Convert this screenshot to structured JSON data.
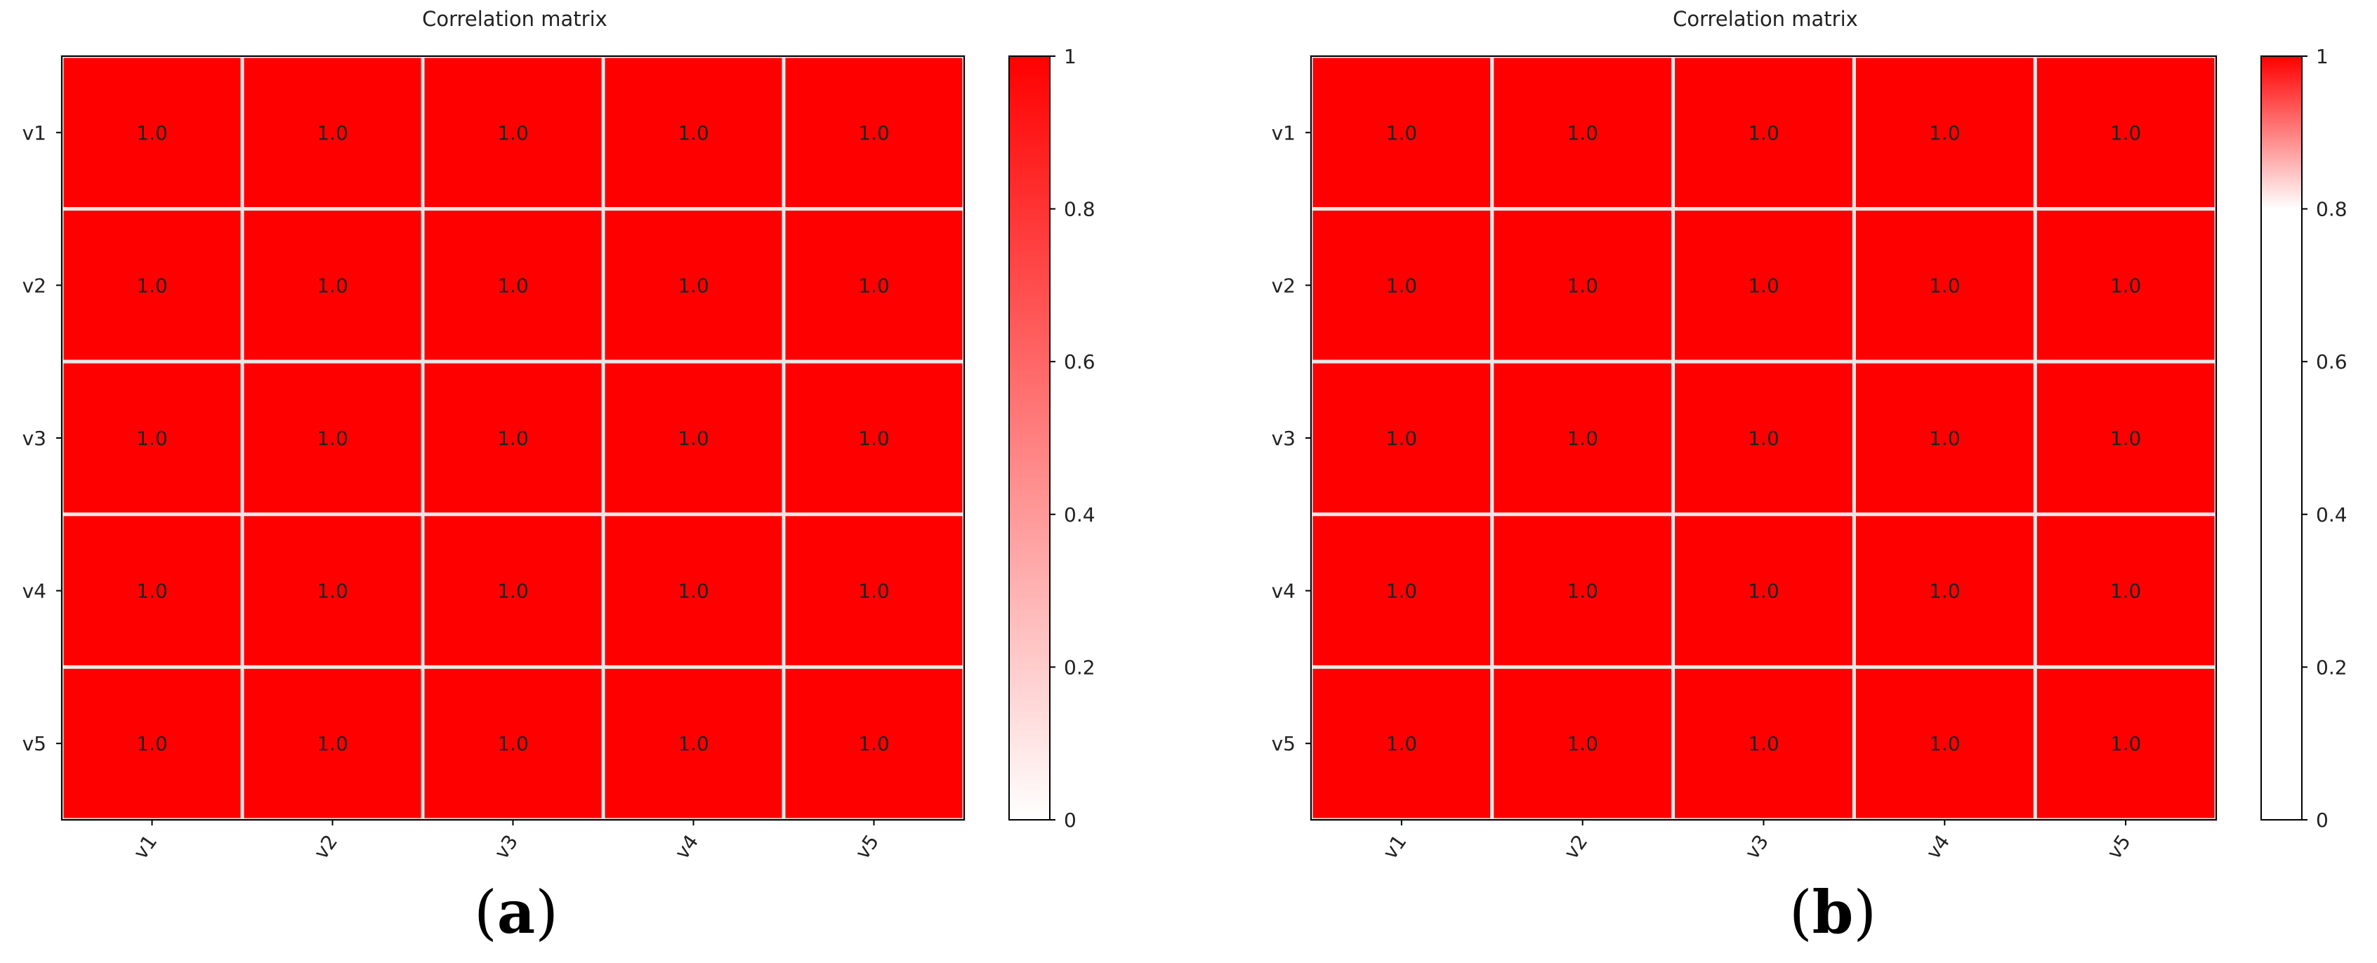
{
  "chart_data": [
    {
      "type": "heatmap",
      "panel": "(a)",
      "title": "Correlation matrix",
      "rows": [
        "v1",
        "v2",
        "v3",
        "v4",
        "v5"
      ],
      "columns": [
        "v1",
        "v2",
        "v3",
        "v4",
        "v5"
      ],
      "values": [
        [
          1.0,
          1.0,
          1.0,
          1.0,
          1.0
        ],
        [
          1.0,
          1.0,
          1.0,
          1.0,
          1.0
        ],
        [
          1.0,
          1.0,
          1.0,
          1.0,
          1.0
        ],
        [
          1.0,
          1.0,
          1.0,
          1.0,
          1.0
        ],
        [
          1.0,
          1.0,
          1.0,
          1.0,
          1.0
        ]
      ],
      "cell_labels": "1.0",
      "colorbar": {
        "range": [
          0,
          1
        ],
        "ticks": [
          "0",
          "0.2",
          "0.4",
          "0.6",
          "0.8",
          "1"
        ],
        "colormap": "linear white-to-red from 0 to 1",
        "low_color": "#ffffff",
        "high_color": "#ff0000"
      },
      "cell_color": "#ff0000",
      "grid_color": "#e8e8e8"
    },
    {
      "type": "heatmap",
      "panel": "(b)",
      "title": "Correlation matrix",
      "rows": [
        "v1",
        "v2",
        "v3",
        "v4",
        "v5"
      ],
      "columns": [
        "v1",
        "v2",
        "v3",
        "v4",
        "v5"
      ],
      "values": [
        [
          1.0,
          1.0,
          1.0,
          1.0,
          1.0
        ],
        [
          1.0,
          1.0,
          1.0,
          1.0,
          1.0
        ],
        [
          1.0,
          1.0,
          1.0,
          1.0,
          1.0
        ],
        [
          1.0,
          1.0,
          1.0,
          1.0,
          1.0
        ],
        [
          1.0,
          1.0,
          1.0,
          1.0,
          1.0
        ]
      ],
      "cell_labels": "1.0",
      "colorbar": {
        "range": [
          0,
          1
        ],
        "ticks": [
          "0",
          "0.2",
          "0.4",
          "0.6",
          "0.8",
          "1"
        ],
        "colormap": "white below 0.8, white-to-red from 0.8 to 1",
        "threshold": 0.8,
        "low_color": "#ffffff",
        "high_color": "#ff0000"
      },
      "cell_color": "#ff0000",
      "grid_color": "#e8e8e8"
    }
  ],
  "panel_labels": {
    "a": {
      "open": "(",
      "letter": "a",
      "close": ")"
    },
    "b": {
      "open": "(",
      "letter": "b",
      "close": ")"
    }
  }
}
